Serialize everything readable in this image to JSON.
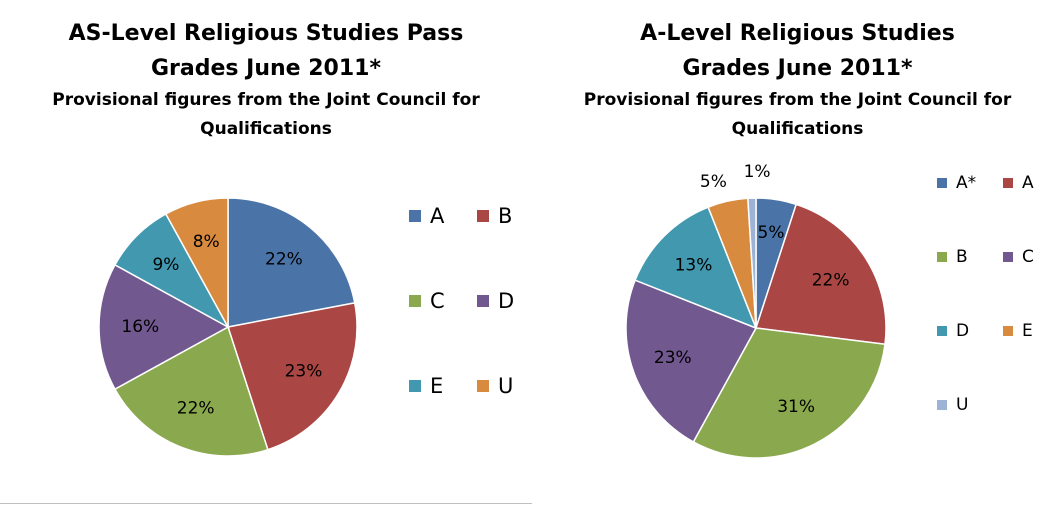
{
  "chart_data": [
    {
      "type": "pie",
      "title": "AS-Level Religious Studies Pass Grades June 2011*",
      "subtitle": "Provisional figures from the Joint Council for Qualifications",
      "categories": [
        "A",
        "B",
        "C",
        "D",
        "E",
        "U"
      ],
      "values": [
        22,
        23,
        22,
        16,
        9,
        8
      ],
      "value_labels": [
        "22%",
        "23%",
        "22%",
        "16%",
        "9%",
        "8%"
      ],
      "colors": [
        "#4a73a8",
        "#aa4644",
        "#8aa84d",
        "#71588f",
        "#4198af",
        "#d88a3f"
      ],
      "legend_position": "right"
    },
    {
      "type": "pie",
      "title": "A-Level Religious Studies Grades June 2011*",
      "subtitle": "Provisional figures from the Joint Council for Qualifications",
      "categories": [
        "A*",
        "A",
        "B",
        "C",
        "D",
        "E",
        "U"
      ],
      "values": [
        5,
        22,
        31,
        23,
        13,
        5,
        1
      ],
      "value_labels": [
        "5%",
        "22%",
        "31%",
        "23%",
        "13%",
        "5%",
        "1%"
      ],
      "colors": [
        "#4a73a8",
        "#aa4644",
        "#8aa84d",
        "#71588f",
        "#4198af",
        "#d88a3f",
        "#9db3d6"
      ],
      "legend_position": "right"
    }
  ]
}
